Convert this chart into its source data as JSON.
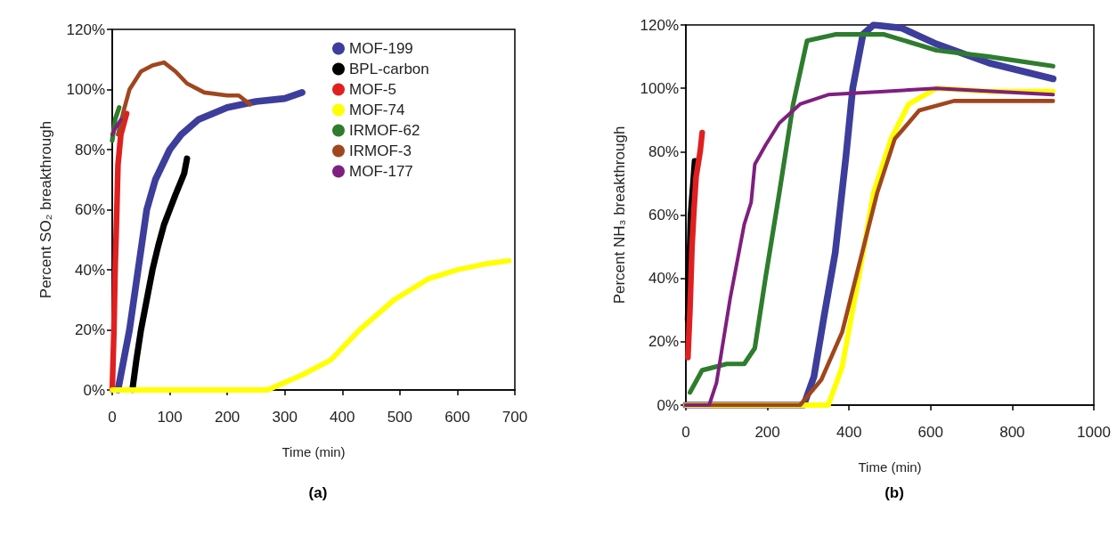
{
  "chart_data": [
    {
      "type": "line",
      "title": "(a)",
      "xlabel": "Time (min)",
      "ylabel": "Percent SO₂ breakthrough",
      "xlim": [
        0,
        700
      ],
      "xticks": [
        0,
        100,
        200,
        300,
        400,
        500,
        600,
        700
      ],
      "ylim": [
        0,
        120
      ],
      "yticks": [
        {
          "value": 0,
          "label": "0%"
        },
        {
          "value": 20,
          "label": "20%"
        },
        {
          "value": 40,
          "label": "40%"
        },
        {
          "value": 60,
          "label": "60%"
        },
        {
          "value": 80,
          "label": "80%"
        },
        {
          "value": 100,
          "label": "100%"
        },
        {
          "value": 120,
          "label": "120%"
        }
      ],
      "grid": false,
      "legend": "top right",
      "marker": "none",
      "series": [
        {
          "name": "MOF-199",
          "color": "#3d3d9c",
          "x": [
            10,
            20,
            30,
            45,
            60,
            75,
            100,
            120,
            150,
            200,
            250,
            300,
            330
          ],
          "values": [
            0,
            10,
            20,
            40,
            60,
            70,
            80,
            85,
            90,
            94,
            96,
            97,
            99
          ]
        },
        {
          "name": "BPL-carbon",
          "color": "#000000",
          "x": [
            35,
            42,
            50,
            60,
            70,
            80,
            90,
            100,
            110,
            125,
            130
          ],
          "values": [
            0,
            10,
            20,
            30,
            40,
            48,
            55,
            60,
            65,
            72,
            77
          ]
        },
        {
          "name": "MOF-5",
          "color": "#e02020",
          "x": [
            0,
            3,
            5,
            8,
            10,
            15,
            25
          ],
          "values": [
            0,
            20,
            40,
            60,
            75,
            85,
            92
          ]
        },
        {
          "name": "MOF-74",
          "color": "#ffff00",
          "x": [
            0,
            100,
            200,
            270,
            330,
            380,
            430,
            490,
            550,
            600,
            650,
            690
          ],
          "values": [
            0,
            0,
            0,
            0,
            5,
            10,
            20,
            30,
            37,
            40,
            42,
            43
          ]
        },
        {
          "name": "IRMOF-62",
          "color": "#2e7d2e",
          "x": [
            0,
            5,
            12
          ],
          "values": [
            83,
            90,
            94
          ]
        },
        {
          "name": "IRMOF-3",
          "color": "#a0461e",
          "x": [
            10,
            20,
            30,
            50,
            70,
            90,
            110,
            130,
            160,
            200,
            220,
            240
          ],
          "values": [
            85,
            93,
            100,
            106,
            108,
            109,
            106,
            102,
            99,
            98,
            98,
            95
          ]
        },
        {
          "name": "MOF-177",
          "color": "#7f1f7f",
          "x": [
            0,
            5,
            15
          ],
          "values": [
            85,
            87,
            90
          ]
        }
      ]
    },
    {
      "type": "line",
      "title": "(b)",
      "xlabel": "Time (min)",
      "ylabel": "Percent NH₃ breakthrough",
      "xlim": [
        0,
        1000
      ],
      "xticks": [
        0,
        200,
        400,
        600,
        800,
        1000
      ],
      "ylim": [
        0,
        120
      ],
      "yticks": [
        {
          "value": 0,
          "label": "0%"
        },
        {
          "value": 20,
          "label": "20%"
        },
        {
          "value": 40,
          "label": "40%"
        },
        {
          "value": 60,
          "label": "60%"
        },
        {
          "value": 80,
          "label": "80%"
        },
        {
          "value": 100,
          "label": "100%"
        },
        {
          "value": 120,
          "label": "120%"
        }
      ],
      "grid": false,
      "legend": false,
      "marker": "none",
      "series": [
        {
          "color": "#3d3d9c",
          "x": [
            0,
            289,
            314,
            340,
            366,
            392,
            409,
            434,
            460,
            529,
            614,
            743,
            900
          ],
          "values": [
            0,
            0,
            9,
            29,
            48,
            78,
            100,
            117,
            120,
            119,
            114,
            108,
            103
          ]
        },
        {
          "color": "#000000",
          "x": [
            5,
            8,
            12,
            18,
            22
          ],
          "values": [
            27,
            40,
            60,
            70,
            77
          ]
        },
        {
          "color": "#e02020",
          "x": [
            5,
            10,
            15,
            20,
            25,
            35,
            40
          ],
          "values": [
            15,
            30,
            50,
            62,
            72,
            80,
            86
          ]
        },
        {
          "color": "#ffff00",
          "x": [
            0,
            349,
            383,
            426,
            460,
            503,
            546,
            614,
            743,
            900
          ],
          "values": [
            0,
            0,
            12,
            42,
            67,
            84,
            95,
            100,
            99,
            99
          ]
        },
        {
          "color": "#2e7d2e",
          "x": [
            10,
            40,
            100,
            143,
            169,
            195,
            229,
            263,
            297,
            366,
            486,
            614,
            743,
            900
          ],
          "values": [
            4,
            11,
            13,
            13,
            18,
            40,
            67,
            95,
            115,
            117,
            117,
            112,
            110,
            107
          ]
        },
        {
          "color": "#a0461e",
          "x": [
            0,
            280,
            332,
            383,
            426,
            469,
            512,
            572,
            657,
            900
          ],
          "values": [
            0,
            0,
            8,
            23,
            45,
            67,
            84,
            93,
            96,
            96
          ]
        },
        {
          "color": "#7f1f7f",
          "x": [
            0,
            57,
            75,
            109,
            143,
            160,
            169,
            195,
            229,
            280,
            349,
            486,
            614,
            900
          ],
          "values": [
            0,
            0,
            7,
            34,
            57,
            64,
            76,
            82,
            89,
            95,
            98,
            99,
            100,
            98
          ]
        }
      ]
    }
  ]
}
